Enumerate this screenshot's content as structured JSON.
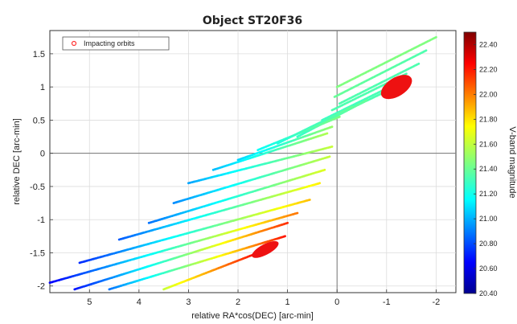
{
  "chart_data": {
    "type": "scatter",
    "title": "Object ST20F36",
    "xlabel": "relative RA*cos(DEC) [arc-min]",
    "ylabel": "relative DEC [arc-min]",
    "xlim": [
      5.8,
      -2.4
    ],
    "ylim": [
      -2.1,
      1.85
    ],
    "x_ticks": [
      5,
      4,
      3,
      2,
      1,
      0,
      -1,
      -2
    ],
    "x_tick_labels": [
      "5",
      "4",
      "3",
      "2",
      "1",
      "0",
      "-1",
      "-2"
    ],
    "y_ticks": [
      1.5,
      1,
      0.5,
      0,
      -0.5,
      -1,
      -1.5,
      -2
    ],
    "y_tick_labels": [
      "1.5",
      "1",
      "0.5",
      "0",
      "-0.5",
      "-1",
      "-1.5",
      "-2"
    ],
    "grid": true,
    "legend": {
      "position": "top-left",
      "entries": [
        {
          "label": "Impacting orbits",
          "color": "#ff3333"
        }
      ]
    },
    "colorbar": {
      "label": "V-band magnitude",
      "range": [
        20.4,
        22.5
      ],
      "ticks": [
        22.4,
        22.2,
        22.0,
        21.8,
        21.6,
        21.4,
        21.2,
        21.0,
        20.8,
        20.6,
        20.4
      ],
      "tick_labels": [
        "22.40",
        "22.20",
        "22.00",
        "21.80",
        "21.60",
        "21.40",
        "21.20",
        "21.00",
        "20.80",
        "20.60",
        "20.40"
      ]
    },
    "series": [
      {
        "start": [
          -2.0,
          1.75
        ],
        "end": [
          0.0,
          1.0
        ],
        "mag_start": 21.45,
        "mag_end": 21.45
      },
      {
        "start": [
          -1.8,
          1.55
        ],
        "end": [
          0.05,
          0.85
        ],
        "mag_start": 21.35,
        "mag_end": 21.4
      },
      {
        "start": [
          -1.65,
          1.35
        ],
        "end": [
          -0.05,
          0.75
        ],
        "mag_start": 21.35,
        "mag_end": 21.35
      },
      {
        "start": [
          -1.4,
          1.2
        ],
        "end": [
          0.1,
          0.65
        ],
        "mag_start": 21.35,
        "mag_end": 21.35
      },
      {
        "start": [
          -1.2,
          1.05
        ],
        "end": [
          0.3,
          0.5
        ],
        "mag_start": 21.35,
        "mag_end": 21.3
      },
      {
        "start": [
          -0.9,
          0.9
        ],
        "end": [
          0.65,
          0.35
        ],
        "mag_start": 21.35,
        "mag_end": 21.3
      },
      {
        "start": [
          -0.6,
          0.8
        ],
        "end": [
          0.8,
          0.25
        ],
        "mag_start": 21.4,
        "mag_end": 21.3
      },
      {
        "start": [
          -0.3,
          0.7
        ],
        "end": [
          1.2,
          0.15
        ],
        "mag_start": 21.4,
        "mag_end": 21.25
      },
      {
        "start": [
          -0.05,
          0.55
        ],
        "end": [
          1.6,
          0.05
        ],
        "mag_start": 21.45,
        "mag_end": 21.2
      },
      {
        "start": [
          0.1,
          0.4
        ],
        "end": [
          2.0,
          -0.1
        ],
        "mag_start": 21.5,
        "mag_end": 21.1
      },
      {
        "start": [
          0.2,
          0.3
        ],
        "end": [
          2.5,
          -0.25
        ],
        "mag_start": 21.55,
        "mag_end": 21.05
      },
      {
        "start": [
          0.1,
          0.1
        ],
        "end": [
          3.0,
          -0.45
        ],
        "mag_start": 21.6,
        "mag_end": 21.0
      },
      {
        "start": [
          0.15,
          -0.05
        ],
        "end": [
          3.3,
          -0.75
        ],
        "mag_start": 21.6,
        "mag_end": 20.95
      },
      {
        "start": [
          0.25,
          -0.25
        ],
        "end": [
          3.8,
          -1.05
        ],
        "mag_start": 21.65,
        "mag_end": 20.9
      },
      {
        "start": [
          0.35,
          -0.45
        ],
        "end": [
          4.4,
          -1.3
        ],
        "mag_start": 21.75,
        "mag_end": 20.85
      },
      {
        "start": [
          0.55,
          -0.7
        ],
        "end": [
          5.2,
          -1.65
        ],
        "mag_start": 21.85,
        "mag_end": 20.75
      },
      {
        "start": [
          0.8,
          -0.9
        ],
        "end": [
          5.8,
          -1.95
        ],
        "mag_start": 22.0,
        "mag_end": 20.65
      },
      {
        "start": [
          1.0,
          -1.05
        ],
        "end": [
          5.3,
          -2.05
        ],
        "mag_start": 22.15,
        "mag_end": 20.7
      },
      {
        "start": [
          1.05,
          -1.25
        ],
        "end": [
          4.6,
          -2.05
        ],
        "mag_start": 22.2,
        "mag_end": 20.9
      },
      {
        "start": [
          1.25,
          -1.4
        ],
        "end": [
          3.5,
          -2.05
        ],
        "mag_start": 22.35,
        "mag_end": 21.6
      }
    ],
    "impacting_orbits": [
      {
        "center": [
          -1.2,
          1.0
        ],
        "rx": 0.35,
        "ry": 0.14,
        "mag": 22.5
      },
      {
        "center": [
          1.45,
          -1.45
        ],
        "rx": 0.3,
        "ry": 0.08,
        "mag": 22.5
      }
    ]
  }
}
